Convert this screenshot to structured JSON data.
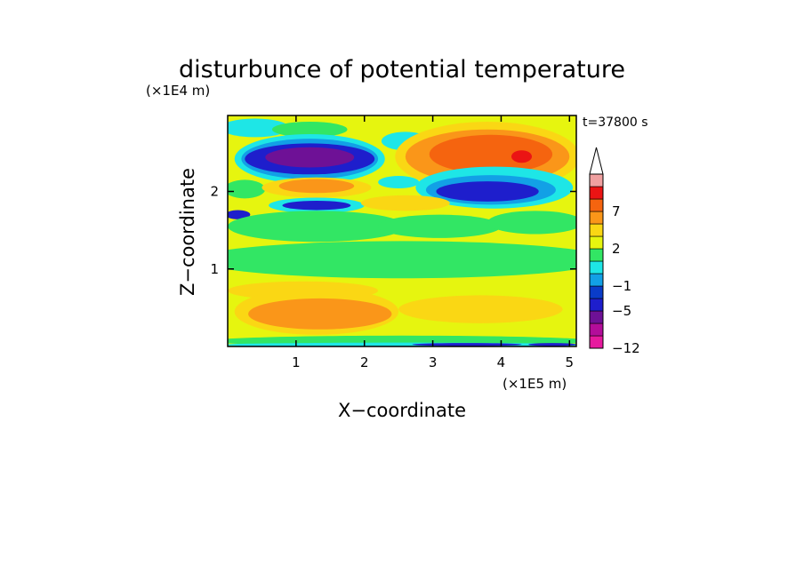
{
  "chart_data": {
    "type": "heatmap",
    "title": "disturbunce of potential temperature",
    "xlabel": "X−coordinate",
    "ylabel": "Z−coordinate",
    "x_unit": "(×1E5 m)",
    "y_unit": "(×1E4 m)",
    "time_label": "t=37800 s",
    "xlim": [
      0,
      5.1
    ],
    "ylim": [
      0,
      2.98
    ],
    "x_ticks": [
      1,
      2,
      3,
      4,
      5
    ],
    "y_ticks": [
      1,
      2
    ],
    "colorbar": {
      "levels": [
        -12,
        -9,
        -7,
        -5,
        -3,
        -1,
        0,
        1,
        2,
        3,
        5,
        7,
        9,
        11
      ],
      "tick_labels": [
        "−12",
        "−5",
        "−1",
        "2",
        "7"
      ],
      "colors": [
        "#e6199e",
        "#b30d9a",
        "#6e1196",
        "#1e1ecc",
        "#0a3cc8",
        "#12a0e6",
        "#1ee6e6",
        "#32e664",
        "#e6f50f",
        "#fad714",
        "#fa9619",
        "#f5640f",
        "#eb1414",
        "#f0a0a0"
      ],
      "extend": "max",
      "overflow_color": "#ffffff"
    },
    "background_level": "#e6f50f",
    "features": [
      {
        "cx": 0.4,
        "cz": 2.82,
        "rx": 0.5,
        "rz": 0.12,
        "level": "#1ee6e6"
      },
      {
        "cx": 1.2,
        "cz": 2.8,
        "rx": 0.55,
        "rz": 0.1,
        "level": "#32e664"
      },
      {
        "cx": 2.6,
        "cz": 2.65,
        "rx": 0.35,
        "rz": 0.12,
        "level": "#1ee6e6"
      },
      {
        "cx": 1.2,
        "cz": 2.42,
        "rx": 1.1,
        "rz": 0.32,
        "level": "#1ee6e6"
      },
      {
        "cx": 1.2,
        "cz": 2.42,
        "rx": 1.0,
        "rz": 0.26,
        "level": "#12a0e6"
      },
      {
        "cx": 1.2,
        "cz": 2.42,
        "rx": 0.95,
        "rz": 0.2,
        "level": "#1e1ecc"
      },
      {
        "cx": 1.2,
        "cz": 2.44,
        "rx": 0.65,
        "rz": 0.13,
        "level": "#6e1196"
      },
      {
        "cx": 3.8,
        "cz": 2.45,
        "rx": 1.35,
        "rz": 0.45,
        "level": "#fad714"
      },
      {
        "cx": 3.8,
        "cz": 2.45,
        "rx": 1.2,
        "rz": 0.35,
        "level": "#fa9619"
      },
      {
        "cx": 3.85,
        "cz": 2.48,
        "rx": 0.9,
        "rz": 0.25,
        "level": "#f5640f"
      },
      {
        "cx": 4.3,
        "cz": 2.45,
        "rx": 0.15,
        "rz": 0.08,
        "level": "#eb1414"
      },
      {
        "cx": 0.25,
        "cz": 2.03,
        "rx": 0.3,
        "rz": 0.12,
        "level": "#32e664"
      },
      {
        "cx": 1.3,
        "cz": 2.05,
        "rx": 0.8,
        "rz": 0.13,
        "level": "#fad714"
      },
      {
        "cx": 1.3,
        "cz": 2.07,
        "rx": 0.55,
        "rz": 0.09,
        "level": "#fa9619"
      },
      {
        "cx": 2.5,
        "cz": 2.12,
        "rx": 0.3,
        "rz": 0.08,
        "level": "#1ee6e6"
      },
      {
        "cx": 3.9,
        "cz": 2.05,
        "rx": 1.15,
        "rz": 0.27,
        "level": "#1ee6e6"
      },
      {
        "cx": 3.85,
        "cz": 2.02,
        "rx": 0.95,
        "rz": 0.19,
        "level": "#12a0e6"
      },
      {
        "cx": 3.8,
        "cz": 2.0,
        "rx": 0.75,
        "rz": 0.13,
        "level": "#1e1ecc"
      },
      {
        "cx": 1.3,
        "cz": 1.82,
        "rx": 0.7,
        "rz": 0.1,
        "level": "#1ee6e6"
      },
      {
        "cx": 1.3,
        "cz": 1.82,
        "rx": 0.5,
        "rz": 0.06,
        "level": "#1e1ecc"
      },
      {
        "cx": 2.6,
        "cz": 1.85,
        "rx": 0.65,
        "rz": 0.1,
        "level": "#fad714"
      },
      {
        "cx": 0.15,
        "cz": 1.7,
        "rx": 0.18,
        "rz": 0.06,
        "level": "#1e1ecc"
      },
      {
        "cx": 1.3,
        "cz": 1.55,
        "rx": 1.3,
        "rz": 0.2,
        "level": "#32e664"
      },
      {
        "cx": 3.1,
        "cz": 1.55,
        "rx": 0.9,
        "rz": 0.15,
        "level": "#32e664"
      },
      {
        "cx": 4.5,
        "cz": 1.6,
        "rx": 0.7,
        "rz": 0.15,
        "level": "#32e664"
      },
      {
        "cx": 2.55,
        "cz": 1.12,
        "rx": 3.0,
        "rz": 0.24,
        "level": "#32e664"
      },
      {
        "cx": 1.1,
        "cz": 0.72,
        "rx": 1.1,
        "rz": 0.12,
        "level": "#fad714"
      },
      {
        "cx": 1.3,
        "cz": 0.45,
        "rx": 1.2,
        "rz": 0.3,
        "level": "#fad714"
      },
      {
        "cx": 1.35,
        "cz": 0.42,
        "rx": 1.05,
        "rz": 0.2,
        "level": "#fa9619"
      },
      {
        "cx": 3.7,
        "cz": 0.48,
        "rx": 1.2,
        "rz": 0.18,
        "level": "#fad714"
      },
      {
        "cx": 2.55,
        "cz": 0.07,
        "rx": 2.8,
        "rz": 0.07,
        "level": "#32e664"
      },
      {
        "cx": 2.55,
        "cz": 0.02,
        "rx": 2.7,
        "rz": 0.03,
        "level": "#1ee6e6"
      },
      {
        "cx": 3.5,
        "cz": 0.025,
        "rx": 0.8,
        "rz": 0.02,
        "level": "#1e1ecc"
      },
      {
        "cx": 4.75,
        "cz": 0.025,
        "rx": 0.35,
        "rz": 0.02,
        "level": "#1e1ecc"
      }
    ]
  }
}
